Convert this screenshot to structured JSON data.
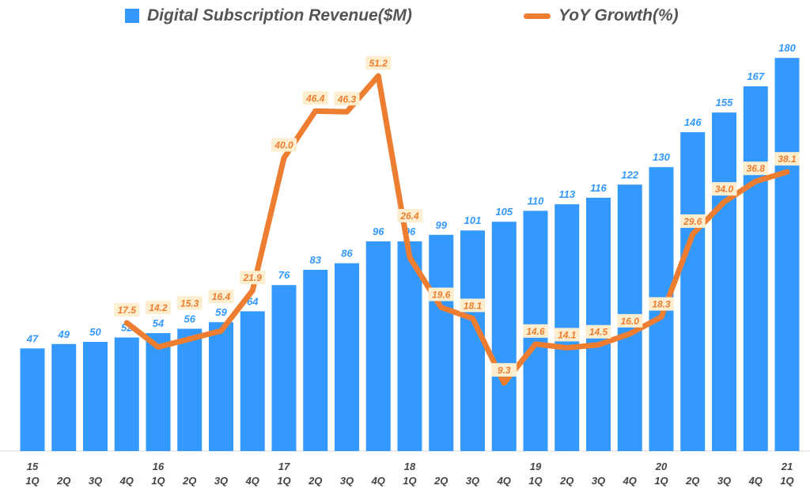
{
  "chart_data": {
    "type": "bar+line",
    "legend": {
      "position": "top"
    },
    "grid": false,
    "categories": [
      {
        "year": "15",
        "q": "1Q"
      },
      {
        "year": "",
        "q": "2Q"
      },
      {
        "year": "",
        "q": "3Q"
      },
      {
        "year": "",
        "q": "4Q"
      },
      {
        "year": "16",
        "q": "1Q"
      },
      {
        "year": "",
        "q": "2Q"
      },
      {
        "year": "",
        "q": "3Q"
      },
      {
        "year": "",
        "q": "4Q"
      },
      {
        "year": "17",
        "q": "1Q"
      },
      {
        "year": "",
        "q": "2Q"
      },
      {
        "year": "",
        "q": "3Q"
      },
      {
        "year": "",
        "q": "4Q"
      },
      {
        "year": "18",
        "q": "1Q"
      },
      {
        "year": "",
        "q": "2Q"
      },
      {
        "year": "",
        "q": "3Q"
      },
      {
        "year": "",
        "q": "4Q"
      },
      {
        "year": "19",
        "q": "1Q"
      },
      {
        "year": "",
        "q": "2Q"
      },
      {
        "year": "",
        "q": "3Q"
      },
      {
        "year": "",
        "q": "4Q"
      },
      {
        "year": "20",
        "q": "1Q"
      },
      {
        "year": "",
        "q": "2Q"
      },
      {
        "year": "",
        "q": "3Q"
      },
      {
        "year": "",
        "q": "4Q"
      },
      {
        "year": "21",
        "q": "1Q"
      }
    ],
    "series": [
      {
        "name": "Digital Subscription Revenue($M)",
        "type": "bar",
        "color": "#3399ff",
        "values": [
          47,
          49,
          50,
          52,
          54,
          56,
          59,
          64,
          76,
          83,
          86,
          96,
          96,
          99,
          101,
          105,
          110,
          113,
          116,
          122,
          130,
          146,
          155,
          167,
          180
        ]
      },
      {
        "name": "YoY Growth(%)",
        "type": "line",
        "color": "#ed7d31",
        "values": [
          null,
          null,
          null,
          17.5,
          14.2,
          15.3,
          16.4,
          21.9,
          40.0,
          46.4,
          46.3,
          51.2,
          26.4,
          19.6,
          18.1,
          9.3,
          14.6,
          14.1,
          14.5,
          16.0,
          18.3,
          29.6,
          34.0,
          36.8,
          38.1
        ]
      }
    ]
  }
}
